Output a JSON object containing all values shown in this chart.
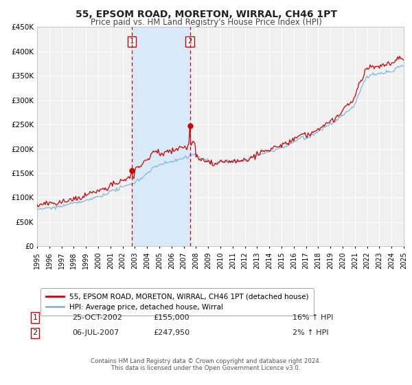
{
  "title": "55, EPSOM ROAD, MORETON, WIRRAL, CH46 1PT",
  "subtitle": "Price paid vs. HM Land Registry's House Price Index (HPI)",
  "title_fontsize": 10,
  "subtitle_fontsize": 8.5,
  "bg_color": "#ffffff",
  "plot_bg_color": "#f0f0f0",
  "grid_color": "#ffffff",
  "hpi_color": "#7fb8e0",
  "price_color": "#cc0000",
  "shaded_region_color": "#d8eaf7",
  "marker1_date": "25-OCT-2002",
  "marker2_date": "06-JUL-2007",
  "marker1_price": 155000,
  "marker2_price": 247950,
  "marker1_hpi_pct": "16%",
  "marker2_hpi_pct": "2%",
  "ylim": [
    0,
    450000
  ],
  "yticks": [
    0,
    50000,
    100000,
    150000,
    200000,
    250000,
    300000,
    350000,
    400000,
    450000
  ],
  "ytick_labels": [
    "£0",
    "£50K",
    "£100K",
    "£150K",
    "£200K",
    "£250K",
    "£300K",
    "£350K",
    "£400K",
    "£450K"
  ],
  "footer1": "Contains HM Land Registry data © Crown copyright and database right 2024.",
  "footer2": "This data is licensed under the Open Government Licence v3.0.",
  "legend_label1": "55, EPSOM ROAD, MORETON, WIRRAL, CH46 1PT (detached house)",
  "legend_label2": "HPI: Average price, detached house, Wirral",
  "xlim_start": 1995,
  "xlim_end": 2025
}
